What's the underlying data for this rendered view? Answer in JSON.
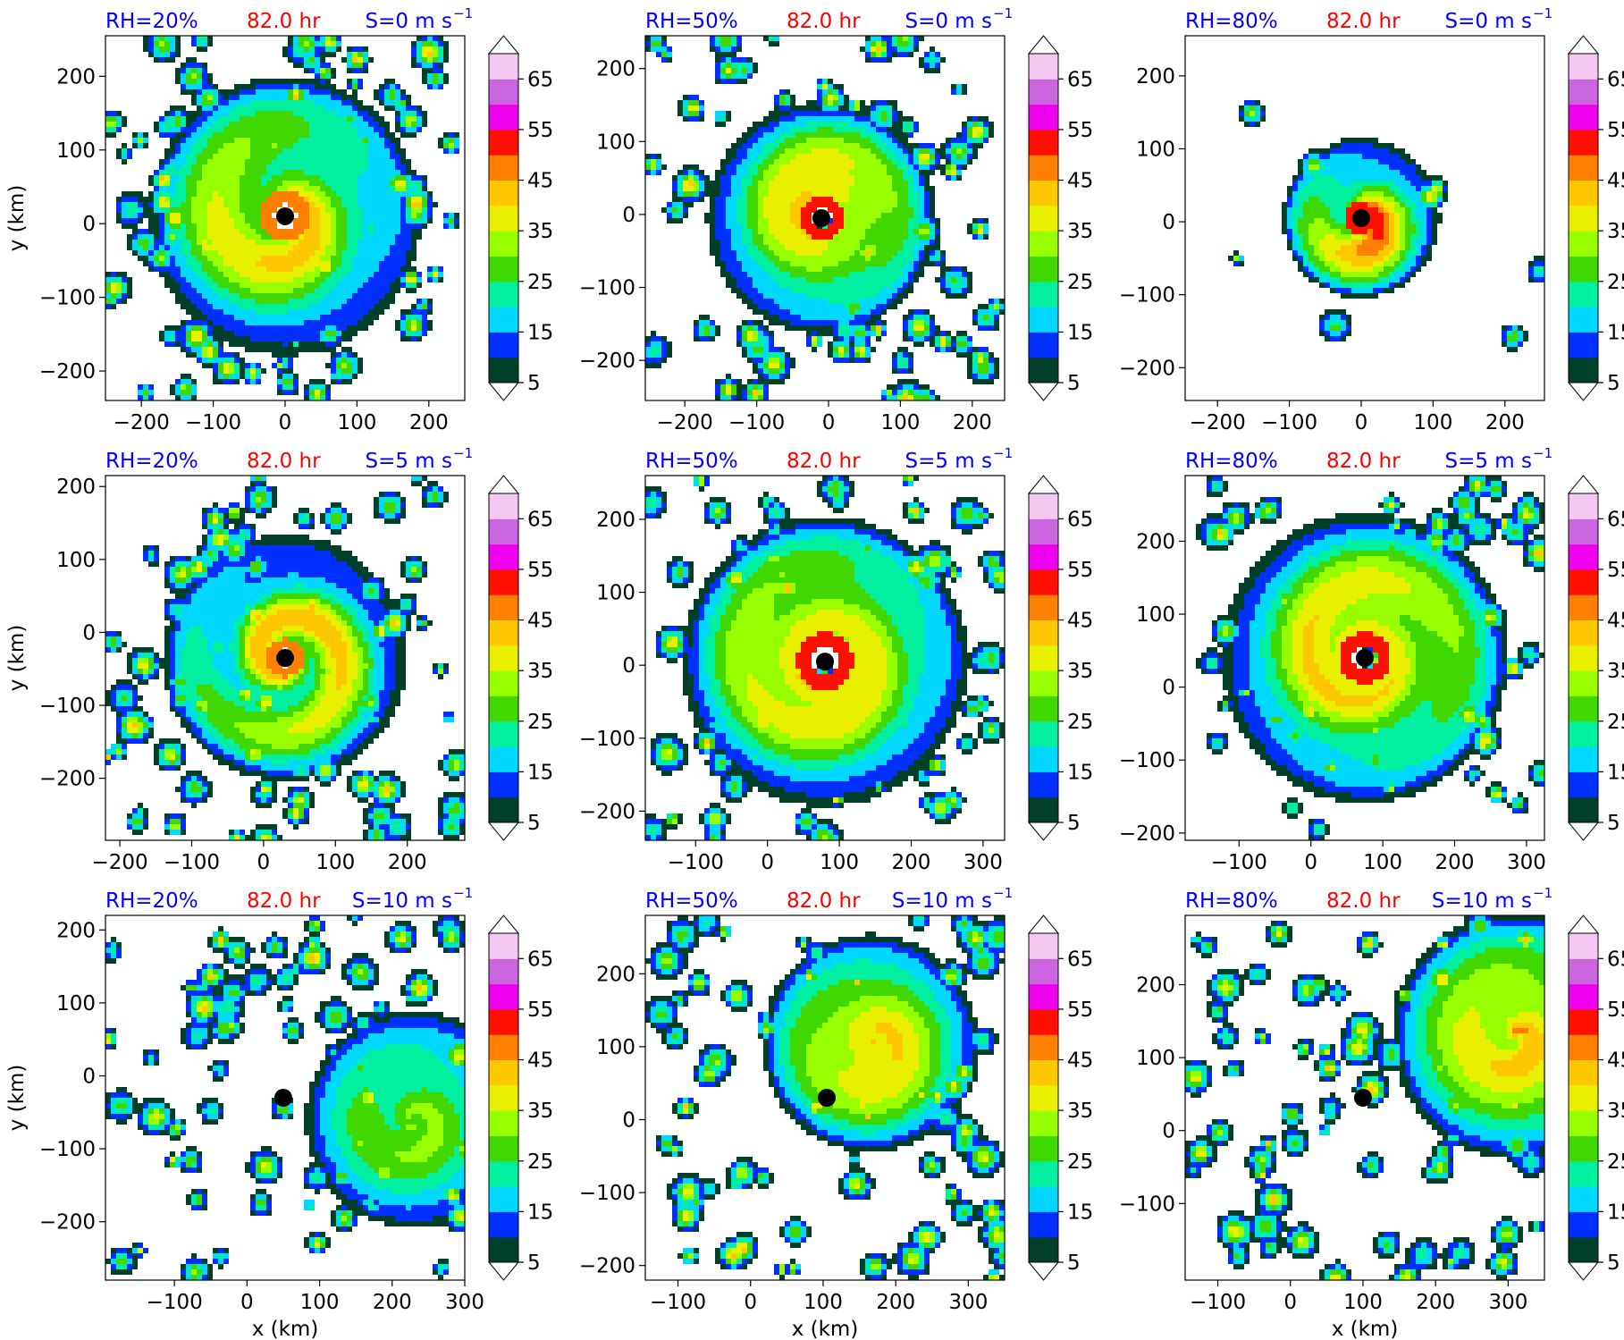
{
  "figure": {
    "rows": 3,
    "cols": 3,
    "x_axis_label": "x (km)",
    "y_axis_label": "y (km)",
    "time_label": "82.0 hr",
    "colors": {
      "rh_label": "#0000ff",
      "time_label": "#ff0000",
      "shear_label": "#0000ff"
    }
  },
  "colorbar": {
    "extend": "both",
    "levels": [
      5,
      10,
      15,
      20,
      25,
      30,
      35,
      40,
      45,
      50,
      55,
      60,
      65,
      70
    ],
    "tick_values": [
      5,
      15,
      25,
      35,
      45,
      55,
      65
    ],
    "tick_labels": [
      "5",
      "15",
      "25",
      "35",
      "45",
      "55",
      "65"
    ],
    "colors": [
      "#00402a",
      "#0030ff",
      "#00d8ff",
      "#00f0a0",
      "#40d800",
      "#98ff00",
      "#e8f000",
      "#ffc800",
      "#ff8000",
      "#ff1000",
      "#ee00ee",
      "#cc66e0",
      "#f4c8f0"
    ]
  },
  "chart_data": [
    {
      "type": "heatmap",
      "rh_label": "RH=20%",
      "shear_label": "S=0 m s",
      "shear_exp": "−1",
      "xlim": [
        -250,
        250
      ],
      "ylim": [
        -240,
        255
      ],
      "xticks": [
        -200,
        -100,
        0,
        100,
        200
      ],
      "yticks": [
        -200,
        -100,
        0,
        100,
        200
      ],
      "xtick_labels": [
        "−200",
        "−100",
        "0",
        "100",
        "200"
      ],
      "ytick_labels": [
        "−200",
        "−100",
        "0",
        "100",
        "200"
      ],
      "center": [
        0,
        10
      ],
      "storm": {
        "radius_km": 190,
        "max_level": 50,
        "spiral": 0.9,
        "eye_km": 16,
        "compact": false
      }
    },
    {
      "type": "heatmap",
      "rh_label": "RH=50%",
      "shear_label": "S=0 m s",
      "shear_exp": "−1",
      "xlim": [
        -255,
        245
      ],
      "ylim": [
        -255,
        245
      ],
      "xticks": [
        -200,
        -100,
        0,
        100,
        200
      ],
      "yticks": [
        -200,
        -100,
        0,
        100,
        200
      ],
      "xtick_labels": [
        "−200",
        "−100",
        "0",
        "100",
        "200"
      ],
      "ytick_labels": [
        "−200",
        "−100",
        "0",
        "100",
        "200"
      ],
      "center": [
        -10,
        -5
      ],
      "storm": {
        "radius_km": 160,
        "max_level": 55,
        "spiral": 0.8,
        "eye_km": 14,
        "compact": false
      }
    },
    {
      "type": "heatmap",
      "rh_label": "RH=80%",
      "shear_label": "S=0 m s",
      "shear_exp": "−1",
      "xlim": [
        -245,
        255
      ],
      "ylim": [
        -245,
        255
      ],
      "xticks": [
        -200,
        -100,
        0,
        100,
        200
      ],
      "yticks": [
        -200,
        -100,
        0,
        100,
        200
      ],
      "xtick_labels": [
        "−200",
        "−100",
        "0",
        "100",
        "200"
      ],
      "ytick_labels": [
        "−200",
        "−100",
        "0",
        "100",
        "200"
      ],
      "center": [
        0,
        5
      ],
      "storm": {
        "radius_km": 110,
        "max_level": 55,
        "spiral": 0.5,
        "eye_km": 10,
        "compact": true
      }
    },
    {
      "type": "heatmap",
      "rh_label": "RH=20%",
      "shear_label": "S=5 m s",
      "shear_exp": "−1",
      "xlim": [
        -220,
        280
      ],
      "ylim": [
        -285,
        215
      ],
      "xticks": [
        -200,
        -100,
        0,
        100,
        200
      ],
      "yticks": [
        -200,
        -100,
        0,
        100,
        200
      ],
      "xtick_labels": [
        "−200",
        "−100",
        "0",
        "100",
        "200"
      ],
      "ytick_labels": [
        "−200",
        "−100",
        "0",
        "100",
        "200"
      ],
      "center": [
        30,
        -35
      ],
      "storm": {
        "radius_km": 170,
        "max_level": 50,
        "spiral": 1.0,
        "eye_km": 12,
        "compact": false
      }
    },
    {
      "type": "heatmap",
      "rh_label": "RH=50%",
      "shear_label": "S=5 m s",
      "shear_exp": "−1",
      "xlim": [
        -170,
        330
      ],
      "ylim": [
        -240,
        260
      ],
      "xticks": [
        -100,
        0,
        100,
        200,
        300
      ],
      "yticks": [
        -200,
        -100,
        0,
        100,
        200
      ],
      "xtick_labels": [
        "−100",
        "0",
        "100",
        "200",
        "300"
      ],
      "ytick_labels": [
        "−200",
        "−100",
        "0",
        "100",
        "200"
      ],
      "center": [
        80,
        5
      ],
      "storm": {
        "radius_km": 200,
        "max_level": 55,
        "spiral": 1.1,
        "eye_km": 18,
        "compact": false
      }
    },
    {
      "type": "heatmap",
      "rh_label": "RH=80%",
      "shear_label": "S=5 m s",
      "shear_exp": "−1",
      "xlim": [
        -175,
        325
      ],
      "ylim": [
        -210,
        290
      ],
      "xticks": [
        -100,
        0,
        100,
        200,
        300
      ],
      "yticks": [
        -200,
        -100,
        0,
        100,
        200
      ],
      "xtick_labels": [
        "−100",
        "0",
        "100",
        "200",
        "300"
      ],
      "ytick_labels": [
        "−200",
        "−100",
        "0",
        "100",
        "200"
      ],
      "center": [
        75,
        40
      ],
      "storm": {
        "radius_km": 200,
        "max_level": 55,
        "spiral": 1.0,
        "eye_km": 16,
        "compact": false
      }
    },
    {
      "type": "heatmap",
      "rh_label": "RH=20%",
      "shear_label": "S=10 m s",
      "shear_exp": "−1",
      "xlim": [
        -195,
        300
      ],
      "ylim": [
        -280,
        220
      ],
      "xticks": [
        -100,
        0,
        100,
        200,
        300
      ],
      "yticks": [
        -200,
        -100,
        0,
        100,
        200
      ],
      "xtick_labels": [
        "−100",
        "0",
        "100",
        "200",
        "300"
      ],
      "ytick_labels": [
        "−200",
        "−100",
        "0",
        "100",
        "200"
      ],
      "center": [
        50,
        -30
      ],
      "storm": {
        "radius_km": 150,
        "max_level": 40,
        "spiral": 0.6,
        "eye_km": 0,
        "offset": [
          230,
          -60
        ],
        "compact": false
      }
    },
    {
      "type": "heatmap",
      "rh_label": "RH=50%",
      "shear_label": "S=10 m s",
      "shear_exp": "−1",
      "xlim": [
        -145,
        350
      ],
      "ylim": [
        -220,
        280
      ],
      "xticks": [
        -100,
        0,
        100,
        200,
        300
      ],
      "yticks": [
        -200,
        -100,
        0,
        100,
        200
      ],
      "xtick_labels": [
        "−100",
        "0",
        "100",
        "200",
        "300"
      ],
      "ytick_labels": [
        "−200",
        "−100",
        "0",
        "100",
        "200"
      ],
      "center": [
        105,
        30
      ],
      "storm": {
        "radius_km": 150,
        "max_level": 55,
        "spiral": 0.6,
        "eye_km": 0,
        "offset": [
          165,
          105
        ],
        "compact": false
      }
    },
    {
      "type": "heatmap",
      "rh_label": "RH=80%",
      "shear_label": "S=10 m s",
      "shear_exp": "−1",
      "xlim": [
        -145,
        350
      ],
      "ylim": [
        -205,
        295
      ],
      "xticks": [
        -100,
        0,
        100,
        200,
        300
      ],
      "yticks": [
        -100,
        0,
        100,
        200
      ],
      "xtick_labels": [
        "−100",
        "0",
        "100",
        "200",
        "300"
      ],
      "ytick_labels": [
        "−100",
        "0",
        "100",
        "200"
      ],
      "center": [
        100,
        45
      ],
      "storm": {
        "radius_km": 170,
        "max_level": 55,
        "spiral": 0.5,
        "eye_km": 0,
        "offset": [
          310,
          130
        ],
        "compact": false
      }
    }
  ]
}
